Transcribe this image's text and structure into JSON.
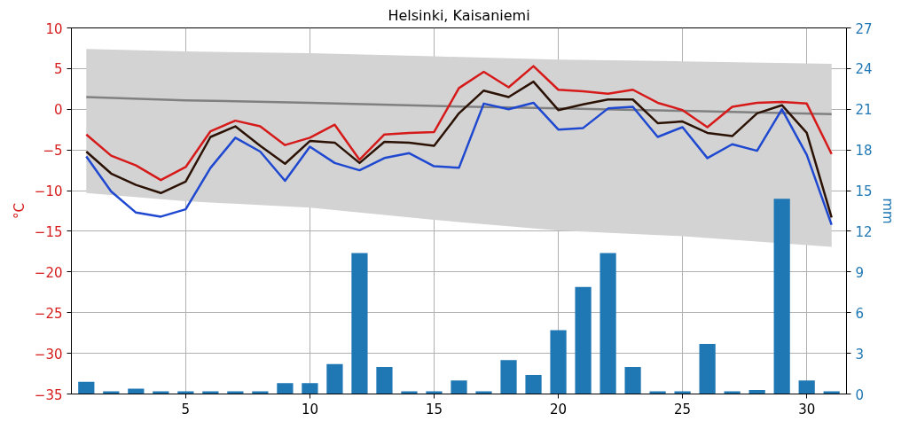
{
  "chart_data": {
    "type": "line",
    "title": "Helsinki, Kaisaniemi",
    "ylabel": "°C",
    "y2label": "mm",
    "x": [
      1,
      2,
      3,
      4,
      5,
      6,
      7,
      8,
      9,
      10,
      11,
      12,
      13,
      14,
      15,
      16,
      17,
      18,
      19,
      20,
      21,
      22,
      23,
      24,
      25,
      26,
      27,
      28,
      29,
      30,
      31
    ],
    "series": [
      {
        "color": "#808080",
        "x": [
          1,
          5,
          10,
          15,
          20,
          25,
          31
        ],
        "values": [
          1.5,
          1.1,
          0.8,
          0.4,
          0.1,
          -0.2,
          -0.6
        ],
        "lower": [
          -10.3,
          -11.3,
          -12.1,
          -13.6,
          -14.9,
          -15.6,
          -16.9
        ],
        "upper": [
          7.4,
          7.1,
          6.9,
          6.5,
          6.1,
          5.9,
          5.6
        ]
      },
      {
        "color": "#d61a1a",
        "values": [
          -3.1,
          -5.7,
          -6.9,
          -8.7,
          -7.1,
          -2.7,
          -1.4,
          -2.1,
          -4.4,
          -3.5,
          -1.9,
          -6.2,
          -3.1,
          -2.9,
          -2.8,
          2.6,
          4.6,
          2.7,
          5.3,
          2.4,
          2.2,
          1.9,
          2.4,
          0.8,
          -0.1,
          -2.2,
          0.3,
          0.8,
          0.9,
          0.7,
          -5.5
        ]
      },
      {
        "color": "#2b1205",
        "values": [
          -5.2,
          -7.9,
          -9.3,
          -10.3,
          -8.9,
          -3.4,
          -2.1,
          -4.5,
          -6.7,
          -3.9,
          -4.1,
          -6.6,
          -4.0,
          -4.1,
          -4.5,
          -0.5,
          2.3,
          1.5,
          3.4,
          -0.1,
          0.6,
          1.2,
          1.2,
          -1.7,
          -1.5,
          -2.9,
          -3.3,
          -0.5,
          0.5,
          -2.9,
          -13.3
        ]
      },
      {
        "color": "#1f48d0",
        "values": [
          -5.8,
          -10.1,
          -12.7,
          -13.2,
          -12.3,
          -7.2,
          -3.5,
          -5.2,
          -8.8,
          -4.6,
          -6.6,
          -7.5,
          -6.0,
          -5.4,
          -7.0,
          -7.2,
          0.7,
          0.0,
          0.8,
          -2.5,
          -2.3,
          0.1,
          0.3,
          -3.4,
          -2.2,
          -6.0,
          -4.3,
          -5.1,
          0.0,
          -5.6,
          -14.2
        ]
      },
      {
        "type": "bar",
        "axis": "y2",
        "color": "#1f77b4",
        "values": [
          0.9,
          0.2,
          0.4,
          0.2,
          0.2,
          0.2,
          0.2,
          0.2,
          0.8,
          0.8,
          2.2,
          10.4,
          2.0,
          0.2,
          0.2,
          1.0,
          0.2,
          2.5,
          1.4,
          4.7,
          7.9,
          10.4,
          2.0,
          0.2,
          0.2,
          3.7,
          0.2,
          0.3,
          14.4,
          1.0,
          0.2
        ]
      }
    ],
    "xlim": [
      0.4,
      31.6
    ],
    "xticks": [
      5,
      10,
      15,
      20,
      25,
      30
    ],
    "ylim": [
      -35,
      10
    ],
    "yticks": [
      -35,
      -30,
      -25,
      -20,
      -15,
      -10,
      -5,
      0,
      5,
      10
    ],
    "y2lim": [
      0,
      27
    ],
    "y2ticks": [
      0,
      3,
      6,
      9,
      12,
      15,
      18,
      21,
      24,
      27
    ],
    "grid": true,
    "marker": "none",
    "line_style": "solid"
  }
}
